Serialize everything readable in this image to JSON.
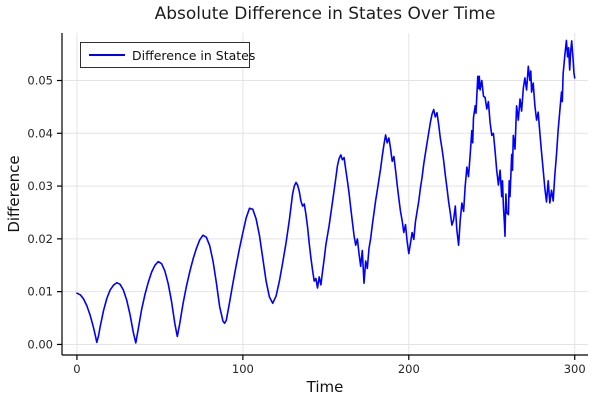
{
  "chart_data": {
    "type": "line",
    "title": "Absolute Difference in States Over Time",
    "xlabel": "Time",
    "ylabel": "Difference",
    "xlim": [
      -9,
      308
    ],
    "ylim": [
      -0.002,
      0.059
    ],
    "xticks": [
      0,
      100,
      200,
      300
    ],
    "xtick_labels": [
      "0",
      "100",
      "200",
      "300"
    ],
    "yticks": [
      0.0,
      0.01,
      0.02,
      0.03,
      0.04,
      0.05
    ],
    "ytick_labels": [
      "0.00",
      "0.01",
      "0.02",
      "0.03",
      "0.04",
      "0.05"
    ],
    "grid": true,
    "legend_position": "top-left",
    "colors": {
      "line": "#0000ff",
      "grid": "#e4e4e4",
      "spine": "#000000",
      "text": "#262626"
    },
    "series": [
      {
        "name": "Difference in States",
        "color": "#0000ff",
        "points": [
          [
            0,
            0.0097
          ],
          [
            2,
            0.0094
          ],
          [
            4,
            0.0086
          ],
          [
            6,
            0.0073
          ],
          [
            8,
            0.0055
          ],
          [
            10,
            0.0032
          ],
          [
            11,
            0.0018
          ],
          [
            12,
            0.0004
          ],
          [
            13,
            0.0016
          ],
          [
            14,
            0.0034
          ],
          [
            16,
            0.0064
          ],
          [
            18,
            0.0087
          ],
          [
            20,
            0.0103
          ],
          [
            22,
            0.0112
          ],
          [
            24,
            0.0117
          ],
          [
            26,
            0.0114
          ],
          [
            28,
            0.0103
          ],
          [
            30,
            0.0084
          ],
          [
            32,
            0.0057
          ],
          [
            34,
            0.0022
          ],
          [
            35.5,
            0.0003
          ],
          [
            37,
            0.003
          ],
          [
            39,
            0.0066
          ],
          [
            41,
            0.0095
          ],
          [
            43,
            0.0118
          ],
          [
            45,
            0.0137
          ],
          [
            47,
            0.015
          ],
          [
            49,
            0.0157
          ],
          [
            51,
            0.0153
          ],
          [
            53,
            0.0139
          ],
          [
            55,
            0.0115
          ],
          [
            57,
            0.0082
          ],
          [
            59,
            0.004
          ],
          [
            60.5,
            0.0015
          ],
          [
            62,
            0.004
          ],
          [
            64,
            0.0078
          ],
          [
            66,
            0.011
          ],
          [
            68,
            0.0138
          ],
          [
            70,
            0.0162
          ],
          [
            72,
            0.0182
          ],
          [
            74,
            0.0198
          ],
          [
            76,
            0.0207
          ],
          [
            78,
            0.0203
          ],
          [
            80,
            0.0187
          ],
          [
            82,
            0.0158
          ],
          [
            84,
            0.0118
          ],
          [
            86,
            0.0072
          ],
          [
            88,
            0.0044
          ],
          [
            89,
            0.004
          ],
          [
            90,
            0.0046
          ],
          [
            92,
            0.008
          ],
          [
            94,
            0.0116
          ],
          [
            96,
            0.015
          ],
          [
            98,
            0.0182
          ],
          [
            100,
            0.0212
          ],
          [
            102,
            0.024
          ],
          [
            104,
            0.0258
          ],
          [
            106,
            0.0256
          ],
          [
            108,
            0.0238
          ],
          [
            110,
            0.0206
          ],
          [
            112,
            0.0163
          ],
          [
            114,
            0.012
          ],
          [
            116,
            0.009
          ],
          [
            118,
            0.0078
          ],
          [
            120,
            0.0092
          ],
          [
            122,
            0.012
          ],
          [
            124,
            0.0155
          ],
          [
            126,
            0.0192
          ],
          [
            128,
            0.0235
          ],
          [
            130,
            0.0285
          ],
          [
            131,
            0.03
          ],
          [
            132,
            0.0307
          ],
          [
            133,
            0.0302
          ],
          [
            134,
            0.029
          ],
          [
            135,
            0.0272
          ],
          [
            136,
            0.0262
          ],
          [
            137,
            0.0266
          ],
          [
            138,
            0.0247
          ],
          [
            139,
            0.0222
          ],
          [
            140,
            0.0192
          ],
          [
            141,
            0.0164
          ],
          [
            142,
            0.014
          ],
          [
            143,
            0.012
          ],
          [
            144,
            0.0125
          ],
          [
            145,
            0.0107
          ],
          [
            146,
            0.0128
          ],
          [
            147,
            0.0113
          ],
          [
            148,
            0.0138
          ],
          [
            149,
            0.0162
          ],
          [
            150,
            0.0188
          ],
          [
            152,
            0.0225
          ],
          [
            154,
            0.027
          ],
          [
            156,
            0.0315
          ],
          [
            157,
            0.0338
          ],
          [
            158,
            0.0352
          ],
          [
            159,
            0.0359
          ],
          [
            160,
            0.035
          ],
          [
            161,
            0.0354
          ],
          [
            162,
            0.0332
          ],
          [
            163,
            0.031
          ],
          [
            164,
            0.0286
          ],
          [
            165,
            0.0259
          ],
          [
            166,
            0.0232
          ],
          [
            167,
            0.0207
          ],
          [
            168,
            0.0188
          ],
          [
            169,
            0.02
          ],
          [
            170,
            0.0172
          ],
          [
            171,
            0.0148
          ],
          [
            172,
            0.0178
          ],
          [
            173,
            0.0116
          ],
          [
            174,
            0.0158
          ],
          [
            175,
            0.0144
          ],
          [
            176,
            0.0182
          ],
          [
            177,
            0.02
          ],
          [
            178,
            0.0226
          ],
          [
            179,
            0.0248
          ],
          [
            180,
            0.0272
          ],
          [
            181,
            0.0292
          ],
          [
            182,
            0.0312
          ],
          [
            183,
            0.0333
          ],
          [
            184,
            0.0356
          ],
          [
            185,
            0.0378
          ],
          [
            186,
            0.0397
          ],
          [
            187,
            0.0382
          ],
          [
            188,
            0.0391
          ],
          [
            189,
            0.0372
          ],
          [
            190,
            0.0347
          ],
          [
            191,
            0.0356
          ],
          [
            192,
            0.0331
          ],
          [
            193,
            0.0302
          ],
          [
            194,
            0.0277
          ],
          [
            195,
            0.0252
          ],
          [
            196,
            0.0234
          ],
          [
            197,
            0.0212
          ],
          [
            198,
            0.0227
          ],
          [
            199,
            0.0196
          ],
          [
            200,
            0.0172
          ],
          [
            201,
            0.0192
          ],
          [
            202,
            0.0212
          ],
          [
            203,
            0.0199
          ],
          [
            204,
            0.0232
          ],
          [
            205,
            0.0252
          ],
          [
            206,
            0.0272
          ],
          [
            207,
            0.0296
          ],
          [
            208,
            0.0317
          ],
          [
            209,
            0.0341
          ],
          [
            210,
            0.0362
          ],
          [
            211,
            0.0381
          ],
          [
            212,
            0.0401
          ],
          [
            213,
            0.0421
          ],
          [
            214,
            0.0436
          ],
          [
            215,
            0.0445
          ],
          [
            216,
            0.0431
          ],
          [
            217,
            0.0439
          ],
          [
            218,
            0.0416
          ],
          [
            219,
            0.0391
          ],
          [
            220,
            0.0371
          ],
          [
            221,
            0.0349
          ],
          [
            222,
            0.0321
          ],
          [
            223,
            0.0296
          ],
          [
            224,
            0.0271
          ],
          [
            225,
            0.0249
          ],
          [
            226,
            0.0226
          ],
          [
            227,
            0.0236
          ],
          [
            228,
            0.0262
          ],
          [
            229,
            0.0216
          ],
          [
            230,
            0.0188
          ],
          [
            231,
            0.0235
          ],
          [
            232,
            0.0268
          ],
          [
            233,
            0.0252
          ],
          [
            234,
            0.03
          ],
          [
            235,
            0.0336
          ],
          [
            236,
            0.0318
          ],
          [
            237,
            0.036
          ],
          [
            238,
            0.0405
          ],
          [
            238.5,
            0.0382
          ],
          [
            239,
            0.043
          ],
          [
            240,
            0.0452
          ],
          [
            240.5,
            0.0438
          ],
          [
            241,
            0.047
          ],
          [
            241.6,
            0.0508
          ],
          [
            242,
            0.0485
          ],
          [
            242.5,
            0.0508
          ],
          [
            243,
            0.0482
          ],
          [
            244,
            0.05
          ],
          [
            245,
            0.047
          ],
          [
            246,
            0.0468
          ],
          [
            247,
            0.0446
          ],
          [
            248,
            0.046
          ],
          [
            249,
            0.042
          ],
          [
            250,
            0.0396
          ],
          [
            251,
            0.04
          ],
          [
            252,
            0.0366
          ],
          [
            253,
            0.033
          ],
          [
            254,
            0.0302
          ],
          [
            255,
            0.033
          ],
          [
            256,
            0.028
          ],
          [
            256.5,
            0.031
          ],
          [
            257,
            0.0262
          ],
          [
            257.6,
            0.023
          ],
          [
            258,
            0.0205
          ],
          [
            258.5,
            0.0285
          ],
          [
            259,
            0.025
          ],
          [
            260,
            0.0246
          ],
          [
            260.5,
            0.031
          ],
          [
            261,
            0.028
          ],
          [
            262,
            0.036
          ],
          [
            262.5,
            0.033
          ],
          [
            263,
            0.0396
          ],
          [
            264,
            0.037
          ],
          [
            265,
            0.0452
          ],
          [
            266,
            0.0425
          ],
          [
            267,
            0.0465
          ],
          [
            268,
            0.0442
          ],
          [
            269,
            0.0485
          ],
          [
            270,
            0.0505
          ],
          [
            271,
            0.0482
          ],
          [
            272,
            0.0527
          ],
          [
            273,
            0.05
          ],
          [
            273.5,
            0.0518
          ],
          [
            274,
            0.0478
          ],
          [
            275,
            0.0495
          ],
          [
            276,
            0.0452
          ],
          [
            277,
            0.0425
          ],
          [
            278,
            0.044
          ],
          [
            279,
            0.04
          ],
          [
            280,
            0.0365
          ],
          [
            281,
            0.033
          ],
          [
            282,
            0.0295
          ],
          [
            283,
            0.027
          ],
          [
            284,
            0.031
          ],
          [
            285,
            0.0268
          ],
          [
            286,
            0.0292
          ],
          [
            287,
            0.0272
          ],
          [
            288,
            0.032
          ],
          [
            289,
            0.036
          ],
          [
            290,
            0.0405
          ],
          [
            291,
            0.0442
          ],
          [
            292,
            0.0478
          ],
          [
            292.5,
            0.046
          ],
          [
            293,
            0.0512
          ],
          [
            294,
            0.0547
          ],
          [
            295,
            0.0576
          ],
          [
            295.7,
            0.0545
          ],
          [
            296.3,
            0.0562
          ],
          [
            297,
            0.052
          ],
          [
            297.6,
            0.0556
          ],
          [
            298.2,
            0.0575
          ],
          [
            299,
            0.054
          ],
          [
            299.5,
            0.0515
          ],
          [
            300,
            0.0505
          ]
        ]
      }
    ]
  }
}
